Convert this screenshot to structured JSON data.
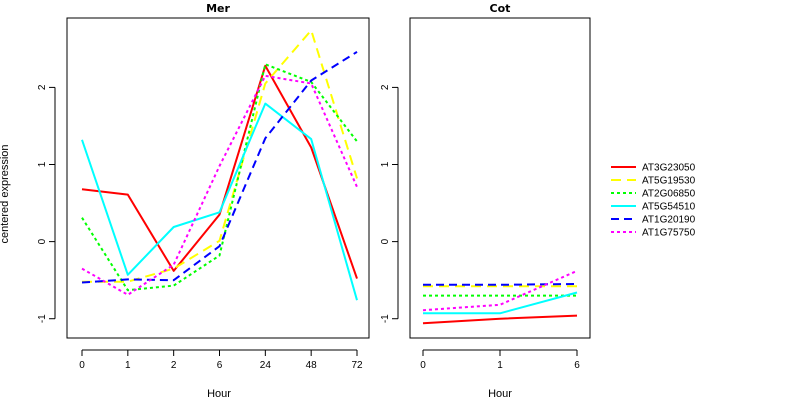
{
  "chart_data": {
    "type": "line",
    "ylabel": "centered expression",
    "xlabel": "Hour",
    "yticks": [
      -1,
      0,
      1,
      2
    ],
    "ylim": [
      -1.25,
      2.9
    ],
    "legend_position": "right",
    "panels": [
      {
        "title": "Mer",
        "x": [
          "0",
          "1",
          "2",
          "6",
          "24",
          "48",
          "72"
        ],
        "series": [
          {
            "name": "AT3G23050",
            "color": "#ff0000",
            "dash": "solid",
            "values": [
              0.68,
              0.61,
              -0.38,
              0.35,
              2.28,
              1.22,
              -0.48
            ]
          },
          {
            "name": "AT5G19530",
            "color": "#ffff00",
            "dash": "long",
            "values": [
              -0.52,
              -0.52,
              -0.35,
              0.01,
              2.05,
              2.74,
              0.82
            ]
          },
          {
            "name": "AT2G06850",
            "color": "#00ff00",
            "dash": "dotted",
            "values": [
              0.31,
              -0.63,
              -0.57,
              -0.18,
              2.3,
              2.07,
              1.3
            ]
          },
          {
            "name": "AT5G54510",
            "color": "#00ffff",
            "dash": "solid",
            "values": [
              1.32,
              -0.43,
              0.19,
              0.38,
              1.79,
              1.33,
              -0.76
            ]
          },
          {
            "name": "AT1G20190",
            "color": "#0000ff",
            "dash": "dashed",
            "values": [
              -0.53,
              -0.49,
              -0.5,
              -0.06,
              1.34,
              2.09,
              2.46
            ]
          },
          {
            "name": "AT1G75750",
            "color": "#ff00ff",
            "dash": "dotted",
            "values": [
              -0.35,
              -0.69,
              -0.3,
              0.98,
              2.15,
              2.05,
              0.71
            ]
          }
        ]
      },
      {
        "title": "Cot",
        "x": [
          "0",
          "1",
          "6"
        ],
        "series": [
          {
            "name": "AT3G23050",
            "color": "#ff0000",
            "dash": "solid",
            "values": [
              -1.06,
              -1.0,
              -0.96
            ]
          },
          {
            "name": "AT5G19530",
            "color": "#ffff00",
            "dash": "long",
            "values": [
              -0.58,
              -0.58,
              -0.58
            ]
          },
          {
            "name": "AT2G06850",
            "color": "#00ff00",
            "dash": "dotted",
            "values": [
              -0.7,
              -0.7,
              -0.7
            ]
          },
          {
            "name": "AT5G54510",
            "color": "#00ffff",
            "dash": "solid",
            "values": [
              -0.93,
              -0.93,
              -0.66
            ]
          },
          {
            "name": "AT1G20190",
            "color": "#0000ff",
            "dash": "dashed",
            "values": [
              -0.56,
              -0.56,
              -0.55
            ]
          },
          {
            "name": "AT1G75750",
            "color": "#ff00ff",
            "dash": "dotted",
            "values": [
              -0.89,
              -0.82,
              -0.38
            ]
          }
        ]
      }
    ]
  }
}
